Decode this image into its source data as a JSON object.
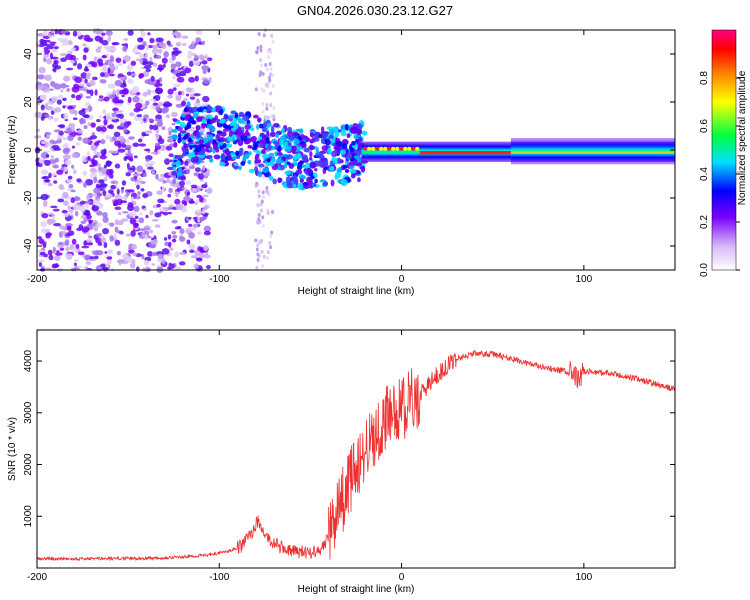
{
  "title": "GN04.2026.030.23.12.G27",
  "chart_data": [
    {
      "type": "heatmap",
      "title": "GN04.2026.030.23.12.G27",
      "xlabel": "Height of straight line (km)",
      "ylabel": "Frequency (Hz)",
      "xlim": [
        -200,
        150
      ],
      "ylim": [
        -50,
        50
      ],
      "xticks": [
        -200,
        -100,
        0,
        100
      ],
      "yticks": [
        -40,
        -20,
        0,
        20,
        40
      ],
      "colorbar": {
        "label": "Normalized spectral amplitude",
        "range": [
          0,
          1
        ],
        "ticks": [
          "0.0",
          "0.2",
          "0.4",
          "0.6",
          "0.8"
        ],
        "tick_values": [
          0.0,
          0.2,
          0.4,
          0.6,
          0.8
        ],
        "colors": [
          "#ffffff",
          "#c8a8f0",
          "#7a00ff",
          "#0000ff",
          "#00e0ff",
          "#00ff40",
          "#ffff00",
          "#ff8000",
          "#ff0000",
          "#ff0080"
        ]
      },
      "ridge": [
        {
          "x": -120,
          "y": 8
        },
        {
          "x": -100,
          "y": 6
        },
        {
          "x": -80,
          "y": 2
        },
        {
          "x": -60,
          "y": -4
        },
        {
          "x": -40,
          "y": -3
        },
        {
          "x": -30,
          "y": -2
        },
        {
          "x": -20,
          "y": 0
        },
        {
          "x": 0,
          "y": 0
        },
        {
          "x": 150,
          "y": -1
        }
      ]
    },
    {
      "type": "line",
      "xlabel": "Height of straight line (km)",
      "ylabel": "SNR (10 * v/v)",
      "xlim": [
        -200,
        150
      ],
      "ylim": [
        0,
        4600
      ],
      "xticks": [
        -200,
        -100,
        0,
        100
      ],
      "yticks": [
        1000,
        2000,
        3000,
        4000
      ],
      "color": "#ee3030",
      "series": [
        {
          "name": "SNR",
          "x": [
            -200,
            -180,
            -160,
            -140,
            -120,
            -105,
            -95,
            -88,
            -82,
            -79,
            -76,
            -72,
            -66,
            -60,
            -50,
            -42,
            -38,
            -34,
            -30,
            -26,
            -22,
            -18,
            -14,
            -10,
            -5,
            0,
            5,
            10,
            15,
            20,
            30,
            40,
            50,
            60,
            70,
            80,
            90,
            95,
            97,
            100,
            110,
            120,
            130,
            140,
            150
          ],
          "y": [
            180,
            180,
            180,
            190,
            210,
            260,
            320,
            420,
            700,
            900,
            700,
            520,
            400,
            320,
            300,
            420,
            900,
            1200,
            1500,
            1900,
            2100,
            2400,
            2600,
            2800,
            3000,
            3100,
            3200,
            3350,
            3550,
            3750,
            4050,
            4150,
            4130,
            4050,
            3950,
            3850,
            3800,
            3700,
            3600,
            3800,
            3780,
            3720,
            3650,
            3550,
            3450
          ]
        }
      ]
    }
  ]
}
